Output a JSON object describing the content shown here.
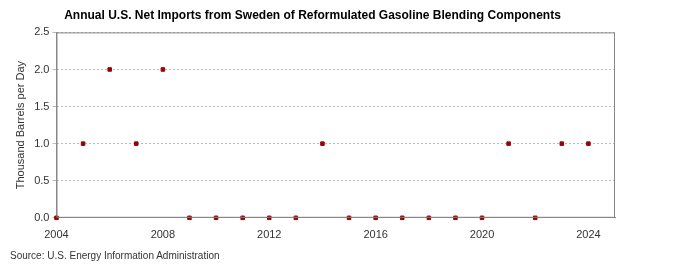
{
  "chart_data": {
    "type": "scatter",
    "title": "Annual U.S. Net Imports from Sweden of Reformulated Gasoline Blending Components",
    "y_label": "Thousand Barrels per Day",
    "source": "Source: U.S. Energy Information Administration",
    "x": [
      2004,
      2005,
      2006,
      2007,
      2008,
      2009,
      2010,
      2011,
      2012,
      2013,
      2014,
      2015,
      2016,
      2017,
      2018,
      2019,
      2020,
      2021,
      2022,
      2023,
      2024
    ],
    "values": [
      0,
      1,
      2,
      1,
      2,
      0,
      0,
      0,
      0,
      0,
      1,
      0,
      0,
      0,
      0,
      0,
      0,
      1,
      0,
      1,
      1
    ],
    "color": "#990000",
    "marker": "square",
    "xlim": [
      2004,
      2025
    ],
    "xticks": [
      2004,
      2008,
      2012,
      2016,
      2020,
      2024
    ],
    "ylim": [
      0,
      2.5
    ],
    "yticks": [
      {
        "value": 0,
        "label": "0.0"
      },
      0.5,
      {
        "value": 1,
        "label": "1.0"
      },
      1.5,
      {
        "value": 2,
        "label": "2.0"
      },
      2.5
    ],
    "grid": true
  }
}
